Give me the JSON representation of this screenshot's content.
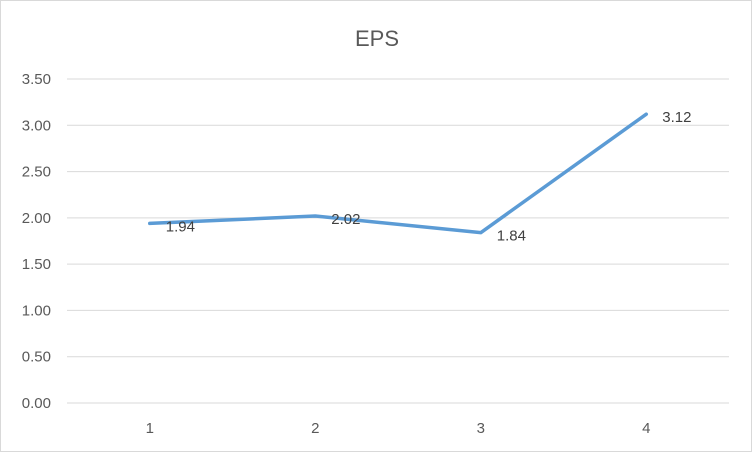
{
  "chart_data": {
    "type": "line",
    "title": "EPS",
    "xlabel": "",
    "ylabel": "",
    "categories": [
      "1",
      "2",
      "3",
      "4"
    ],
    "series": [
      {
        "values": [
          1.94,
          2.02,
          1.84,
          3.12
        ],
        "color": "#5b9bd5",
        "data_labels": [
          "1.94",
          "2.02",
          "1.84",
          "3.12"
        ]
      }
    ],
    "ylim": [
      0,
      3.5
    ],
    "y_ticks": [
      "0.00",
      "0.50",
      "1.00",
      "1.50",
      "2.00",
      "2.50",
      "3.00",
      "3.50"
    ],
    "grid": true,
    "legend": "none"
  }
}
